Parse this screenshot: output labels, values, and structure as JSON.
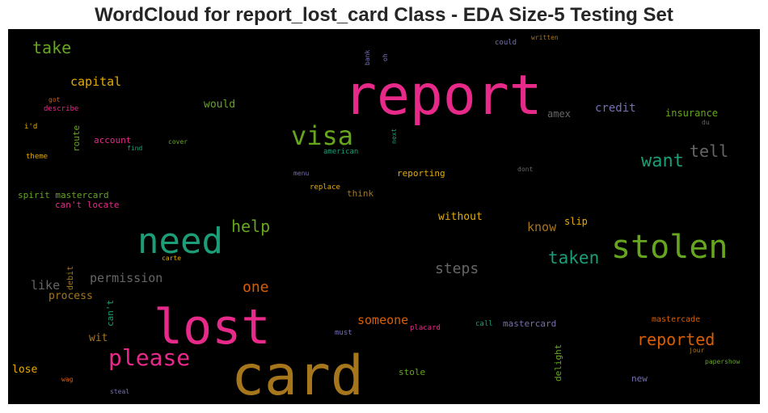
{
  "chart_data": {
    "type": "wordcloud",
    "title": "WordCloud for report_lost_card Class - EDA Size-5 Testing Set",
    "background": "#000000",
    "palette": "Dark2",
    "words": [
      {
        "text": "report",
        "color": "#e7298a"
      },
      {
        "text": "card",
        "color": "#a6761d"
      },
      {
        "text": "lost",
        "color": "#e7298a"
      },
      {
        "text": "need",
        "color": "#1b9e77"
      },
      {
        "text": "stolen",
        "color": "#66a61e"
      },
      {
        "text": "visa",
        "color": "#66a61e"
      },
      {
        "text": "please",
        "color": "#e7298a"
      },
      {
        "text": "want",
        "color": "#1b9e77"
      },
      {
        "text": "tell",
        "color": "#666666"
      },
      {
        "text": "taken",
        "color": "#1b9e77"
      },
      {
        "text": "reported",
        "color": "#d95f02"
      },
      {
        "text": "take",
        "color": "#66a61e"
      },
      {
        "text": "help",
        "color": "#66a61e"
      },
      {
        "text": "steps",
        "color": "#666666"
      },
      {
        "text": "capital",
        "color": "#e6ab02"
      },
      {
        "text": "one",
        "color": "#d95f02"
      },
      {
        "text": "permission",
        "color": "#666666"
      },
      {
        "text": "like",
        "color": "#666666"
      },
      {
        "text": "know",
        "color": "#a6761d"
      },
      {
        "text": "someone",
        "color": "#d95f02"
      },
      {
        "text": "credit",
        "color": "#7570b3"
      },
      {
        "text": "would",
        "color": "#66a61e"
      },
      {
        "text": "without",
        "color": "#e6ab02"
      },
      {
        "text": "insurance",
        "color": "#66a61e"
      },
      {
        "text": "process",
        "color": "#a6761d"
      },
      {
        "text": "amex",
        "color": "#666666"
      },
      {
        "text": "slip",
        "color": "#e6ab02"
      },
      {
        "text": "lose",
        "color": "#e6ab02"
      },
      {
        "text": "mastercard",
        "color": "#7570b3"
      },
      {
        "text": "wit",
        "color": "#a6761d"
      },
      {
        "text": "reporting",
        "color": "#e6ab02"
      },
      {
        "text": "account",
        "color": "#e7298a"
      },
      {
        "text": "spirit mastercard",
        "color": "#66a61e"
      },
      {
        "text": "can't locate",
        "color": "#e7298a"
      },
      {
        "text": "route",
        "color": "#66a61e"
      },
      {
        "text": "think",
        "color": "#a6761d"
      },
      {
        "text": "stole",
        "color": "#66a61e"
      },
      {
        "text": "delight",
        "color": "#66a61e"
      },
      {
        "text": "can't",
        "color": "#1b9e77"
      },
      {
        "text": "new",
        "color": "#7570b3"
      },
      {
        "text": "mastercade",
        "color": "#d95f02"
      },
      {
        "text": "debit",
        "color": "#a6761d"
      },
      {
        "text": "replace",
        "color": "#e6ab02"
      },
      {
        "text": "american",
        "color": "#1b9e77"
      },
      {
        "text": "placard",
        "color": "#e7298a"
      },
      {
        "text": "call",
        "color": "#1b9e77"
      },
      {
        "text": "must",
        "color": "#7570b3"
      },
      {
        "text": "describe",
        "color": "#e7298a"
      },
      {
        "text": "got",
        "color": "#d95f02"
      },
      {
        "text": "i'd",
        "color": "#e6ab02"
      },
      {
        "text": "theme",
        "color": "#e6ab02"
      },
      {
        "text": "find",
        "color": "#1b9e77"
      },
      {
        "text": "cover",
        "color": "#66a61e"
      },
      {
        "text": "bank",
        "color": "#7570b3"
      },
      {
        "text": "oh",
        "color": "#7570b3"
      },
      {
        "text": "could",
        "color": "#7570b3"
      },
      {
        "text": "written",
        "color": "#a6761d"
      },
      {
        "text": "next",
        "color": "#1b9e77"
      },
      {
        "text": "menu",
        "color": "#7570b3"
      },
      {
        "text": "dont",
        "color": "#666666"
      },
      {
        "text": "du",
        "color": "#666666"
      },
      {
        "text": "carte",
        "color": "#e6ab02"
      },
      {
        "text": "jour",
        "color": "#a6761d"
      },
      {
        "text": "papershow",
        "color": "#66a61e"
      },
      {
        "text": "wag",
        "color": "#d95f02"
      },
      {
        "text": "steal",
        "color": "#7570b3"
      }
    ]
  }
}
